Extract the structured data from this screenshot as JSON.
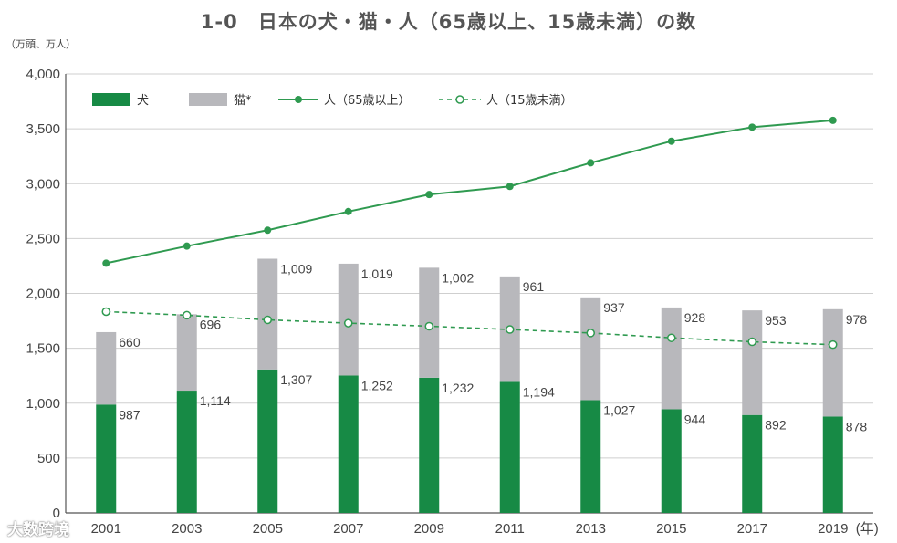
{
  "title": "1-0　日本の犬・猫・人（65歳以上、15歳未満）の数",
  "watermark": "大数跨境",
  "chart_data": {
    "type": "bar+line",
    "title": "1-0　日本の犬・猫・人（65歳以上、15歳未満）の数",
    "ylabel": "（万頭、万人）",
    "xlabel": "(年)",
    "ylim": [
      0,
      4000
    ],
    "yticks": [
      0,
      500,
      1000,
      1500,
      2000,
      2500,
      3000,
      3500,
      4000
    ],
    "ytick_labels": [
      "0",
      "500",
      "1,000",
      "1,500",
      "2,000",
      "2,500",
      "3,000",
      "3,500",
      "4,000"
    ],
    "categories": [
      "2001",
      "2003",
      "2005",
      "2007",
      "2009",
      "2011",
      "2013",
      "2015",
      "2017",
      "2019"
    ],
    "grid": true,
    "legend_position": "top-left",
    "colors": {
      "dog": "#178a45",
      "cat": "#b8b8bc",
      "elderly": "#2f9a50",
      "children": "#2f9a50",
      "grid": "#cfcfcf",
      "axis": "#555555"
    },
    "series": [
      {
        "name": "犬",
        "kind": "bar-stack-bottom",
        "values": [
          987,
          1114,
          1307,
          1252,
          1232,
          1194,
          1027,
          944,
          892,
          878
        ],
        "labels": [
          "987",
          "1,114",
          "1,307",
          "1,252",
          "1,232",
          "1,194",
          "1,027",
          "944",
          "892",
          "878"
        ]
      },
      {
        "name": "猫*",
        "kind": "bar-stack-top",
        "values": [
          660,
          696,
          1009,
          1019,
          1002,
          961,
          937,
          928,
          953,
          978
        ],
        "labels": [
          "660",
          "696",
          "1,009",
          "1,019",
          "1,002",
          "961",
          "937",
          "928",
          "953",
          "978"
        ]
      },
      {
        "name": "人（65歳以上）",
        "kind": "line-solid",
        "values": [
          2275,
          2431,
          2576,
          2746,
          2901,
          2975,
          3190,
          3387,
          3515,
          3577
        ]
      },
      {
        "name": "人（15歳未満）",
        "kind": "line-dashed",
        "values": [
          1834,
          1801,
          1759,
          1729,
          1701,
          1671,
          1639,
          1595,
          1559,
          1533
        ]
      }
    ]
  }
}
